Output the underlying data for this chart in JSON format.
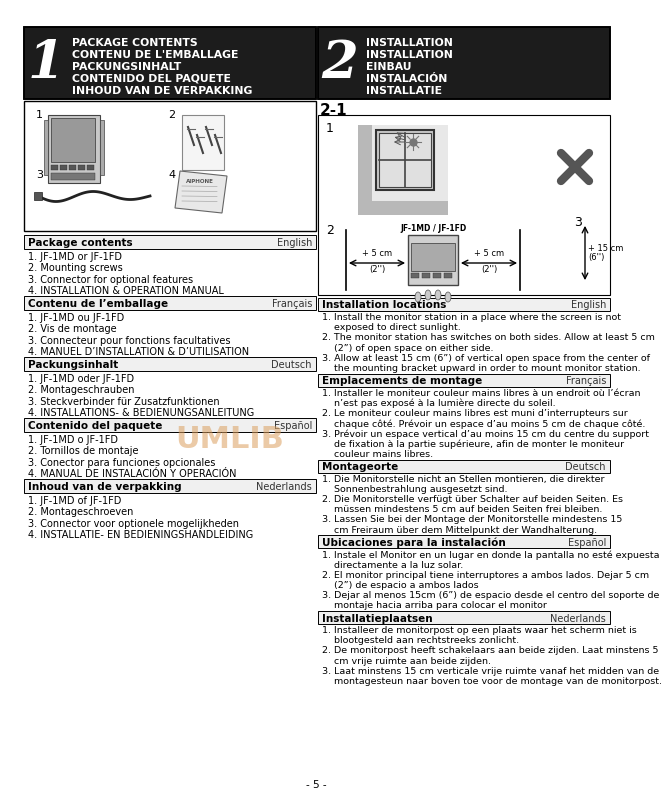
{
  "page_bg": "#ffffff",
  "section1_header": {
    "number": "1",
    "lines": [
      "PACKAGE CONTENTS",
      "CONTENU DE L'EMBALLAGE",
      "PACKUNGSINHALT",
      "CONTENIDO DEL PAQUETE",
      "INHOUD VAN DE VERPAKKING"
    ]
  },
  "section2_header": {
    "number": "2",
    "lines": [
      "INSTALLATION",
      "INSTALLATION",
      "EINBAU",
      "INSTALACIÓN",
      "INSTALLATIE"
    ]
  },
  "left_text_sections": [
    {
      "heading": "Package contents",
      "lang": "English",
      "items": [
        "1. JF-1MD or JF-1FD",
        "2. Mounting screws",
        "3. Connector for optional features",
        "4. INSTALLATION & OPERATION MANUAL"
      ]
    },
    {
      "heading": "Contenu de l’emballage",
      "lang": "Français",
      "items": [
        "1. JF-1MD ou JF-1FD",
        "2. Vis de montage",
        "3. Connecteur pour fonctions facultatives",
        "4. MANUEL D’INSTALLATION & D’UTILISATION"
      ]
    },
    {
      "heading": "Packungsinhalt",
      "lang": "Deutsch",
      "items": [
        "1. JF-1MD oder JF-1FD",
        "2. Montageschrauben",
        "3. Steckverbinder für Zusatzfunktionen",
        "4. INSTALLATIONS- & BEDIENUNGSANLEITUNG"
      ]
    },
    {
      "heading": "Contenido del paquete",
      "lang": "Español",
      "items": [
        "1. JF-1MD o JF-1FD",
        "2. Tornillos de montaje",
        "3. Conector para funciones opcionales",
        "4. MANUAL DE INSTALACIÓN Y OPERACIÓN"
      ]
    },
    {
      "heading": "Inhoud van de verpakking",
      "lang": "Nederlands",
      "items": [
        "1. JF-1MD of JF-1FD",
        "2. Montageschroeven",
        "3. Connector voor optionele mogelijkheden",
        "4. INSTALLATIE- EN BEDIENINGSHANDLEIDING"
      ]
    }
  ],
  "right_text_sections": [
    {
      "heading": "Installation locations",
      "lang": "English",
      "items": [
        "1. Install the monitor station in a place where the screen is not",
        "    exposed to direct sunlight.",
        "2. The monitor station has switches on both sides. Allow at least 5 cm",
        "    (2”) of open space on either side.",
        "3. Allow at least 15 cm (6”) of vertical open space from the center of",
        "    the mounting bracket upward in order to mount monitor station."
      ]
    },
    {
      "heading": "Emplacements de montage",
      "lang": "Français",
      "items": [
        "1. Installer le moniteur couleur mains libres à un endroit où l’écran",
        "    n’est pas exposé à la lumière directe du soleil.",
        "2. Le moniteur couleur mains libres est muni d’interrupteurs sur",
        "    chaque côté. Prévoir un espace d’au moins 5 cm de chaque côté.",
        "3. Prévoir un espace vertical d’au moins 15 cm du centre du support",
        "    de fixation à la partie supérieure, afin de monter le moniteur",
        "    couleur mains libres."
      ]
    },
    {
      "heading": "Montageorte",
      "lang": "Deutsch",
      "items": [
        "1. Die Monitorstelle nicht an Stellen montieren, die direkter",
        "    Sonnenbestrahlung ausgesetzt sind.",
        "2. Die Monitorstelle verfügt über Schalter auf beiden Seiten. Es",
        "    müssen mindestens 5 cm auf beiden Seiten frei bleiben.",
        "3. Lassen Sie bei der Montage der Monitorstelle mindestens 15",
        "    cm Freiraum über dem Mittelpunkt der Wandhalterung."
      ]
    },
    {
      "heading": "Ubicaciones para la instalación",
      "lang": "Español",
      "items": [
        "1. Instale el Monitor en un lugar en donde la pantalla no esté expuesta",
        "    directamente a la luz solar.",
        "2. El monitor principal tiene interruptores a ambos lados. Dejar 5 cm",
        "    (2”) de espacio a ambos lados",
        "3. Dejar al menos 15cm (6”) de espacio desde el centro del soporte de",
        "    montaje hacia arriba para colocar el monitor"
      ]
    },
    {
      "heading": "Installatieplaatsen",
      "lang": "Nederlands",
      "items": [
        "1. Installeer de monitorpost op een plaats waar het scherm niet is",
        "    blootgesteld aan rechtstreeks zonlicht.",
        "2. De monitorpost heeft schakelaars aan beide zijden. Laat minstens 5",
        "    cm vrije ruimte aan beide zijden.",
        "3. Laat minstens 15 cm verticale vrije ruimte vanaf het midden van de",
        "    montagesteun naar boven toe voor de montage van de monitorpost."
      ]
    }
  ],
  "watermark": "UMLIB",
  "page_num": "- 5 -"
}
